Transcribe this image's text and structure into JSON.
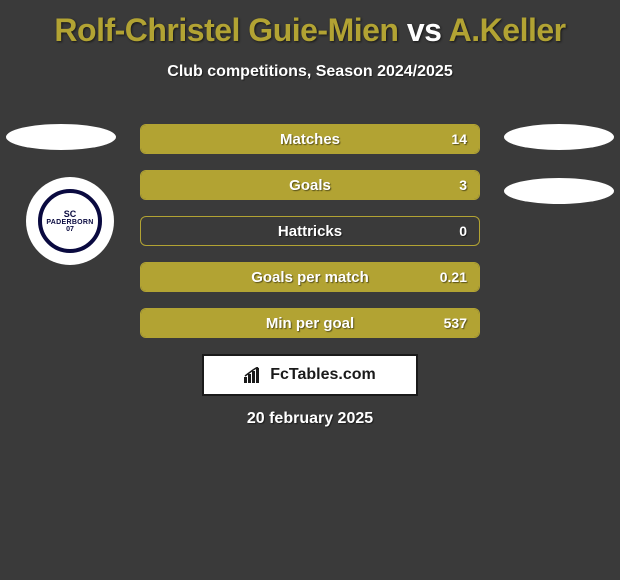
{
  "title": {
    "player1": "Rolf-Christel Guie-Mien",
    "vs": "vs",
    "player2": "A.Keller",
    "player1_color": "#b2a333",
    "vs_color": "#ffffff",
    "player2_color": "#b2a333"
  },
  "subtitle": "Club competitions, Season 2024/2025",
  "club": {
    "sc": "SC",
    "name": "PADERBORN",
    "year": "07"
  },
  "stats": {
    "accent_color": "#b2a333",
    "border_color": "#b2a333",
    "rows": [
      {
        "label": "Matches",
        "value": "14",
        "left_pct": 0,
        "right_pct": 100
      },
      {
        "label": "Goals",
        "value": "3",
        "left_pct": 0,
        "right_pct": 100
      },
      {
        "label": "Hattricks",
        "value": "0",
        "left_pct": 0,
        "right_pct": 0
      },
      {
        "label": "Goals per match",
        "value": "0.21",
        "left_pct": 0,
        "right_pct": 100
      },
      {
        "label": "Min per goal",
        "value": "537",
        "left_pct": 0,
        "right_pct": 100
      }
    ]
  },
  "logo_text": "FcTables.com",
  "date": "20 february 2025",
  "colors": {
    "background": "#3a3a3a",
    "text": "#ffffff"
  }
}
